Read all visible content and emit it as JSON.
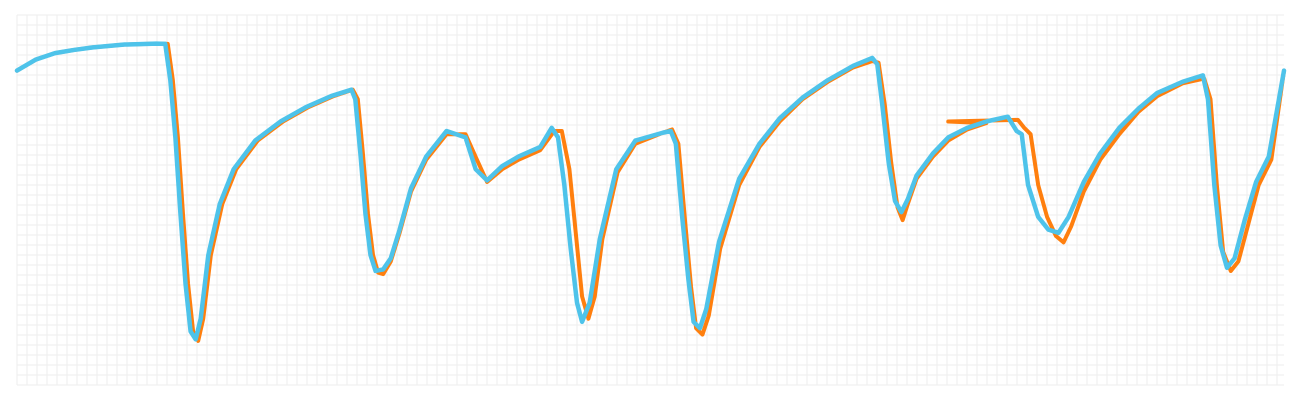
{
  "chart_data": {
    "type": "line",
    "title": "",
    "xlabel": "",
    "ylabel": "",
    "grid": true,
    "legend": "none",
    "xlim": [
      0,
      100
    ],
    "ylim": [
      0,
      100
    ],
    "series": [
      {
        "color": "#ff7f0e",
        "points": [
          [
            0,
            91
          ],
          [
            1.5,
            94.5
          ],
          [
            3,
            96.5
          ],
          [
            4.5,
            97.5
          ],
          [
            6,
            98.3
          ],
          [
            8.5,
            99.2
          ],
          [
            11,
            99.5
          ],
          [
            11.9,
            99.4
          ],
          [
            12.3,
            88
          ],
          [
            12.7,
            70
          ],
          [
            13.1,
            46
          ],
          [
            13.5,
            24
          ],
          [
            13.9,
            9
          ],
          [
            14.3,
            6
          ],
          [
            14.7,
            13
          ],
          [
            15.3,
            33
          ],
          [
            16.2,
            49
          ],
          [
            17.3,
            60
          ],
          [
            19,
            69
          ],
          [
            21,
            75
          ],
          [
            23,
            79.5
          ],
          [
            25,
            83
          ],
          [
            26.5,
            85
          ],
          [
            26.9,
            82
          ],
          [
            27.3,
            65
          ],
          [
            27.7,
            46
          ],
          [
            28.1,
            33
          ],
          [
            28.5,
            27.5
          ],
          [
            28.9,
            27
          ],
          [
            29.5,
            31
          ],
          [
            30.2,
            40
          ],
          [
            31.1,
            53
          ],
          [
            32.3,
            63
          ],
          [
            33.9,
            71
          ],
          [
            35.4,
            71
          ],
          [
            36.3,
            63
          ],
          [
            37.1,
            56
          ],
          [
            38.3,
            60
          ],
          [
            39.6,
            63
          ],
          [
            41.3,
            66
          ],
          [
            42.4,
            72
          ],
          [
            43,
            72
          ],
          [
            43.6,
            60
          ],
          [
            44.1,
            40
          ],
          [
            44.6,
            20
          ],
          [
            45.1,
            13
          ],
          [
            45.6,
            20
          ],
          [
            46.2,
            38
          ],
          [
            47.4,
            59
          ],
          [
            48.8,
            68
          ],
          [
            51,
            71.5
          ],
          [
            51.7,
            72.5
          ],
          [
            52.2,
            68
          ],
          [
            52.7,
            45
          ],
          [
            53.2,
            23
          ],
          [
            53.6,
            10
          ],
          [
            54.1,
            8
          ],
          [
            54.6,
            14
          ],
          [
            55.5,
            35
          ],
          [
            57,
            55
          ],
          [
            58.6,
            67
          ],
          [
            60.2,
            75
          ],
          [
            62,
            82
          ],
          [
            64,
            87.5
          ],
          [
            66,
            92
          ],
          [
            67.5,
            94
          ],
          [
            68,
            93.5
          ],
          [
            68.5,
            80
          ],
          [
            69,
            62
          ],
          [
            69.5,
            48
          ],
          [
            69.9,
            44
          ],
          [
            70.3,
            49
          ],
          [
            71,
            57
          ],
          [
            72.3,
            64
          ],
          [
            73.5,
            69
          ],
          [
            75,
            72.5
          ],
          [
            76.5,
            74.5
          ],
          [
            73.5,
            75
          ],
          [
            79,
            75.5
          ],
          [
            79.5,
            73
          ],
          [
            80,
            71
          ],
          [
            80.6,
            55
          ],
          [
            81.3,
            45
          ],
          [
            82,
            39
          ],
          [
            82.6,
            37
          ],
          [
            83.2,
            42
          ],
          [
            84.2,
            53
          ],
          [
            85.5,
            63
          ],
          [
            87,
            71
          ],
          [
            88.5,
            78
          ],
          [
            90,
            83
          ],
          [
            92,
            87
          ],
          [
            93.7,
            88.5
          ],
          [
            94.2,
            82
          ],
          [
            94.7,
            55
          ],
          [
            95.2,
            34
          ],
          [
            95.8,
            28
          ],
          [
            96.4,
            31
          ],
          [
            97.2,
            43
          ],
          [
            98,
            55
          ],
          [
            99,
            63
          ],
          [
            100,
            91
          ]
        ]
      },
      {
        "color": "#4ec3ea",
        "points": [
          [
            0,
            91
          ],
          [
            1.5,
            94.5
          ],
          [
            3,
            96.5
          ],
          [
            4.5,
            97.5
          ],
          [
            6,
            98.3
          ],
          [
            8.5,
            99.2
          ],
          [
            11,
            99.5
          ],
          [
            11.7,
            99.4
          ],
          [
            12.1,
            88
          ],
          [
            12.5,
            70
          ],
          [
            12.9,
            46
          ],
          [
            13.3,
            24
          ],
          [
            13.7,
            9
          ],
          [
            14.1,
            6.5
          ],
          [
            14.5,
            13
          ],
          [
            15.1,
            33
          ],
          [
            16,
            49
          ],
          [
            17.1,
            60
          ],
          [
            18.8,
            69
          ],
          [
            20.8,
            75
          ],
          [
            22.8,
            79.5
          ],
          [
            24.8,
            83
          ],
          [
            26.4,
            85
          ],
          [
            26.7,
            82
          ],
          [
            27.1,
            65
          ],
          [
            27.5,
            46
          ],
          [
            27.9,
            33
          ],
          [
            28.3,
            28
          ],
          [
            28.9,
            28.5
          ],
          [
            29.5,
            32
          ],
          [
            30.2,
            41
          ],
          [
            31.1,
            54
          ],
          [
            32.3,
            64
          ],
          [
            33.9,
            72
          ],
          [
            35.4,
            70
          ],
          [
            36.2,
            60
          ],
          [
            37.1,
            56.5
          ],
          [
            38.3,
            61
          ],
          [
            39.6,
            64
          ],
          [
            41.3,
            67
          ],
          [
            42.2,
            73
          ],
          [
            42.7,
            70
          ],
          [
            43.2,
            55
          ],
          [
            43.7,
            35
          ],
          [
            44.2,
            18
          ],
          [
            44.6,
            12
          ],
          [
            45.2,
            18
          ],
          [
            46,
            38
          ],
          [
            47.3,
            60
          ],
          [
            48.8,
            69
          ],
          [
            51,
            71.5
          ],
          [
            51.6,
            72
          ],
          [
            52,
            68
          ],
          [
            52.5,
            45
          ],
          [
            53,
            25
          ],
          [
            53.4,
            12
          ],
          [
            53.9,
            10
          ],
          [
            54.4,
            16
          ],
          [
            55.4,
            37
          ],
          [
            57,
            57
          ],
          [
            58.6,
            68
          ],
          [
            60.2,
            76
          ],
          [
            62,
            82.5
          ],
          [
            64,
            88
          ],
          [
            66,
            92.5
          ],
          [
            67.5,
            95
          ],
          [
            67.9,
            93
          ],
          [
            68.3,
            80
          ],
          [
            68.8,
            62
          ],
          [
            69.3,
            50
          ],
          [
            69.8,
            46.5
          ],
          [
            70.3,
            50.5
          ],
          [
            71,
            58
          ],
          [
            72.3,
            65
          ],
          [
            73.5,
            70
          ],
          [
            75,
            73
          ],
          [
            76.5,
            75
          ],
          [
            78.2,
            76.5
          ],
          [
            78.9,
            72
          ],
          [
            79.3,
            71
          ],
          [
            79.8,
            55
          ],
          [
            80.6,
            45
          ],
          [
            81.4,
            41
          ],
          [
            82.2,
            40
          ],
          [
            83,
            45
          ],
          [
            84.2,
            56
          ],
          [
            85.5,
            65
          ],
          [
            87,
            73
          ],
          [
            88.5,
            79
          ],
          [
            90,
            84
          ],
          [
            92,
            87.5
          ],
          [
            93.6,
            89.5
          ],
          [
            94,
            82
          ],
          [
            94.5,
            55
          ],
          [
            95,
            36
          ],
          [
            95.5,
            29
          ],
          [
            96.1,
            32
          ],
          [
            96.9,
            44
          ],
          [
            97.8,
            56
          ],
          [
            98.8,
            64
          ],
          [
            100,
            91
          ]
        ]
      }
    ]
  }
}
